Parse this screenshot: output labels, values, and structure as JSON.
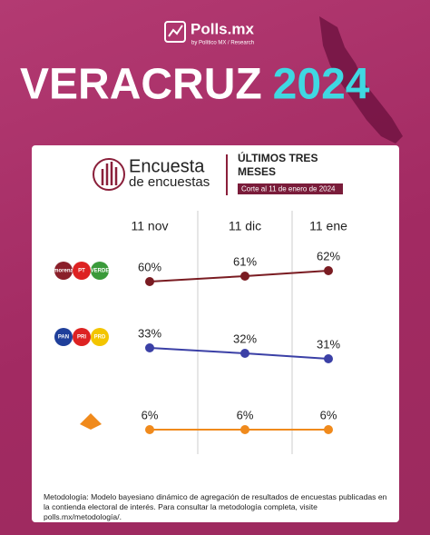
{
  "brand": "Polls.mx",
  "brand_byline": "by Político MX / Research",
  "chart_data": {
    "type": "line",
    "title": "VERACRUZ",
    "title_highlight": "2024",
    "logo_text": [
      "Encuesta",
      "de encuestas"
    ],
    "subtitle": "ÚLTIMOS TRES MESES",
    "cutoff": "Corte al 11 de enero de 2024",
    "categories": [
      "11 nov",
      "11 dic",
      "11 ene"
    ],
    "series": [
      {
        "parties": [
          "morena",
          "PT",
          "VERDE"
        ],
        "color": "#7a1c22",
        "values": [
          60,
          61,
          62
        ],
        "value_labels": [
          "60%",
          "61%",
          "62%"
        ]
      },
      {
        "parties": [
          "PAN",
          "PRI",
          "PRD"
        ],
        "color": "#3b40a6",
        "values": [
          33,
          32,
          31
        ],
        "value_labels": [
          "33%",
          "32%",
          "31%"
        ]
      },
      {
        "color": "#f08a1c",
        "values": [
          6,
          6,
          6
        ],
        "value_labels": [
          "6%",
          "6%",
          "6%"
        ]
      }
    ],
    "footnote": "Metodología: Modelo bayesiano dinámico de agregación de resultados de encuestas publicadas en la contienda electoral de interés. Para consultar la metodología completa, visite polls.mx/metodología/."
  }
}
